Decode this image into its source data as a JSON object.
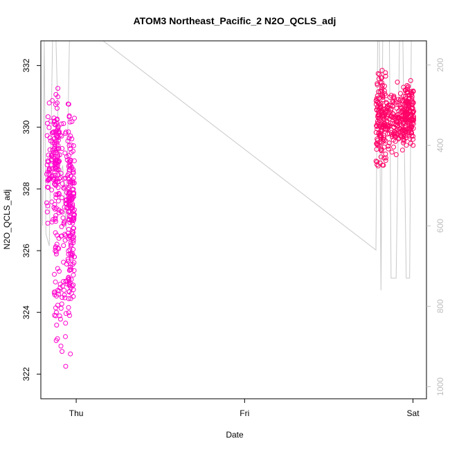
{
  "chart_data": {
    "type": "scatter",
    "title": "ATOM3 Northeast_Pacific_2 N2O_QCLS_adj",
    "xlabel": "Date",
    "ylabel": "N2O_QCLS_adj",
    "x_ticks": [
      "Thu",
      "Fri",
      "Sat"
    ],
    "x_tick_values": [
      0,
      1,
      2
    ],
    "xlim": [
      -0.21,
      2.08
    ],
    "ylim": [
      321.2,
      332.8
    ],
    "y_ticks": [
      322,
      324,
      326,
      328,
      330,
      332
    ],
    "y2_label": "",
    "y2_ticks": [
      200,
      400,
      600,
      800,
      1000
    ],
    "y2lim": [
      1030,
      140
    ],
    "grid": false,
    "series": [
      {
        "kind": "points",
        "color": "#ff00cc",
        "clusters": [
          {
            "x0": -0.175,
            "x1": -0.1,
            "y_lo": 326.6,
            "y_hi": 331.5
          },
          {
            "x0": -0.13,
            "x1": -0.03,
            "y_lo": 321.7,
            "y_hi": 331.0
          },
          {
            "x0": -0.05,
            "x1": -0.01,
            "y_lo": 323.2,
            "y_hi": 331.2
          }
        ]
      },
      {
        "kind": "points",
        "color": "#ff0066",
        "clusters": [
          {
            "x0": 1.78,
            "x1": 1.84,
            "y_lo": 328.1,
            "y_hi": 332.4
          },
          {
            "x0": 1.84,
            "x1": 1.95,
            "y_lo": 328.8,
            "y_hi": 331.6
          },
          {
            "x0": 1.95,
            "x1": 2.005,
            "y_lo": 329.2,
            "y_hi": 331.8
          }
        ]
      },
      {
        "kind": "line",
        "axis": "right",
        "color": "#c8c8c8",
        "points": [
          [
            -0.2,
            600
          ],
          [
            -0.19,
            140
          ],
          [
            -0.18,
            620
          ],
          [
            -0.16,
            650
          ],
          [
            -0.14,
            130
          ],
          [
            -0.12,
            140
          ],
          [
            -0.1,
            480
          ],
          [
            -0.08,
            450
          ],
          [
            -0.06,
            610
          ],
          [
            -0.04,
            140
          ],
          [
            0.16,
            140
          ],
          [
            1.78,
            660
          ],
          [
            1.79,
            140
          ],
          [
            1.8,
            140
          ],
          [
            1.81,
            760
          ],
          [
            1.82,
            140
          ],
          [
            1.86,
            140
          ],
          [
            1.87,
            730
          ],
          [
            1.9,
            730
          ],
          [
            1.92,
            140
          ],
          [
            1.94,
            140
          ],
          [
            1.96,
            730
          ],
          [
            1.98,
            730
          ],
          [
            1.99,
            140
          ],
          [
            2.0,
            140
          ]
        ]
      }
    ]
  }
}
